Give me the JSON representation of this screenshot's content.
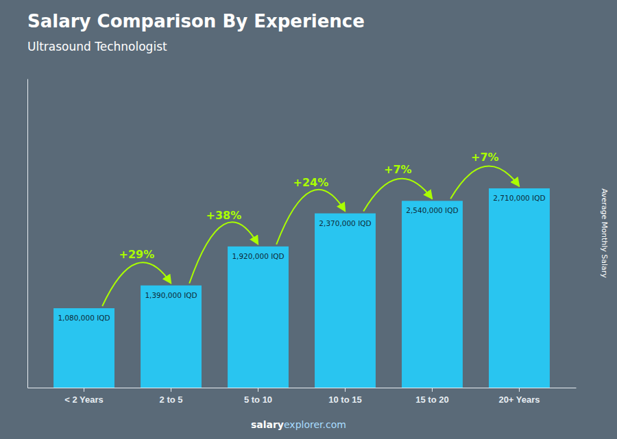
{
  "chart_data": {
    "type": "bar",
    "title": "Salary Comparison By Experience",
    "subtitle": "Ultrasound Technologist",
    "y_label": "Average Monthly Salary",
    "categories": [
      "< 2 Years",
      "2 to 5",
      "5 to 10",
      "10 to 15",
      "15 to 20",
      "20+ Years"
    ],
    "values": [
      1080000,
      1390000,
      1920000,
      2370000,
      2540000,
      2710000
    ],
    "value_labels": [
      "1,080,000 IQD",
      "1,390,000 IQD",
      "1,920,000 IQD",
      "2,370,000 IQD",
      "2,540,000 IQD",
      "2,710,000 IQD"
    ],
    "data_labels": true,
    "color": "#29c5f0",
    "ylim": [
      0,
      4200500
    ],
    "tick_labels": "x",
    "annotations": [
      {
        "text": "+29%",
        "color": "#aaff00"
      },
      {
        "text": "+38%",
        "color": "#aaff00"
      },
      {
        "text": "+24%",
        "color": "#aaff00"
      },
      {
        "text": "+7%",
        "color": "#aaff00"
      },
      {
        "text": "+7%",
        "color": "#aaff00"
      }
    ],
    "footer": [
      {
        "text": "salary",
        "color": "#ffffff"
      },
      {
        "text": "explorer.com",
        "color": "#aaddff"
      }
    ]
  }
}
